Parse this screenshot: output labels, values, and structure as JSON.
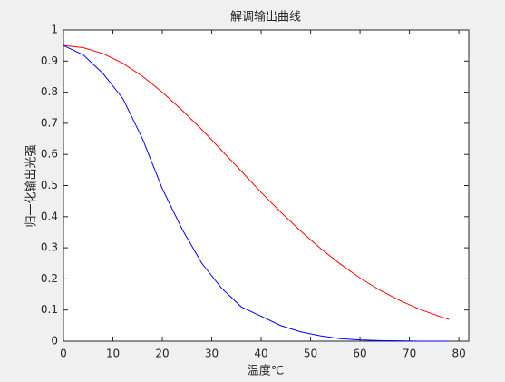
{
  "chart_data": {
    "type": "line",
    "title": "解调输出曲线",
    "x_label": "温度℃",
    "y_label": "归一化输出光强",
    "x": [
      0,
      4,
      8,
      12,
      16,
      20,
      24,
      28,
      32,
      36,
      40,
      44,
      48,
      52,
      56,
      60,
      64,
      68,
      72,
      76,
      78
    ],
    "series": [
      {
        "color": "#ff0000",
        "values": [
          0.95,
          0.943,
          0.924,
          0.893,
          0.851,
          0.8,
          0.742,
          0.68,
          0.613,
          0.546,
          0.478,
          0.414,
          0.354,
          0.298,
          0.248,
          0.203,
          0.164,
          0.131,
          0.103,
          0.08,
          0.07
        ]
      },
      {
        "color": "#0000ff",
        "values": [
          0.95,
          0.92,
          0.86,
          0.78,
          0.65,
          0.49,
          0.36,
          0.25,
          0.17,
          0.11,
          0.08,
          0.05,
          0.03,
          0.017,
          0.008,
          0.004,
          0.002,
          0.001,
          0,
          0,
          0
        ]
      }
    ],
    "xlim": [
      0,
      82
    ],
    "ylim": [
      0,
      1
    ],
    "xticks": [
      0,
      10,
      20,
      30,
      40,
      50,
      60,
      70,
      80
    ],
    "yticks": [
      0,
      0.1,
      0.2,
      0.3,
      0.4,
      0.5,
      0.6,
      0.7,
      0.8,
      0.9,
      1
    ],
    "grid": false
  }
}
